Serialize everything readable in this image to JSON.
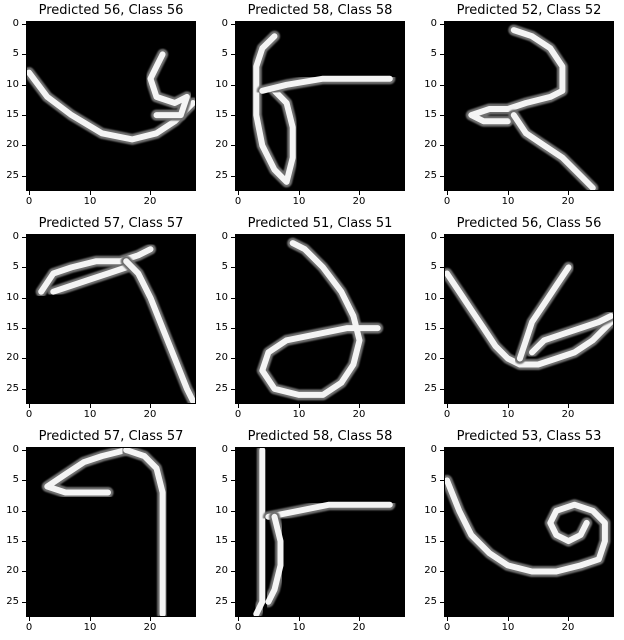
{
  "chart_data": [
    {
      "type": "image",
      "title": "Predicted 56, Class 56",
      "xlim": [
        -0.5,
        27.5
      ],
      "ylim": [
        27.5,
        -0.5
      ],
      "xticks": [
        0,
        10,
        20
      ],
      "yticks": [
        0,
        5,
        10,
        15,
        20,
        25
      ],
      "stroke_paths": [
        [
          [
            0,
            8
          ],
          [
            3,
            12
          ],
          [
            7,
            15
          ],
          [
            12,
            18
          ],
          [
            17,
            19
          ],
          [
            21,
            18
          ],
          [
            24,
            16
          ],
          [
            26,
            14
          ],
          [
            27,
            13
          ]
        ],
        [
          [
            22,
            5
          ],
          [
            21,
            7
          ],
          [
            20,
            9
          ],
          [
            21,
            12
          ],
          [
            24,
            13
          ],
          [
            26,
            12
          ],
          [
            25,
            15
          ],
          [
            21,
            15
          ]
        ]
      ]
    },
    {
      "type": "image",
      "title": "Predicted 58, Class 58",
      "xlim": [
        -0.5,
        27.5
      ],
      "ylim": [
        27.5,
        -0.5
      ],
      "xticks": [
        0,
        10,
        20
      ],
      "yticks": [
        0,
        5,
        10,
        15,
        20,
        25
      ],
      "stroke_paths": [
        [
          [
            6,
            2
          ],
          [
            4,
            4
          ],
          [
            3,
            7
          ],
          [
            3,
            11
          ],
          [
            3,
            15
          ],
          [
            4,
            20
          ],
          [
            6,
            24
          ],
          [
            8,
            26
          ],
          [
            9,
            22
          ],
          [
            9,
            17
          ],
          [
            8,
            13
          ],
          [
            6,
            11
          ]
        ],
        [
          [
            4,
            11
          ],
          [
            8,
            10
          ],
          [
            14,
            9
          ],
          [
            20,
            9
          ],
          [
            25,
            9
          ]
        ]
      ]
    },
    {
      "type": "image",
      "title": "Predicted 52, Class 52",
      "xlim": [
        -0.5,
        27.5
      ],
      "ylim": [
        27.5,
        -0.5
      ],
      "xticks": [
        0,
        10,
        20
      ],
      "yticks": [
        0,
        5,
        10,
        15,
        20,
        25
      ],
      "stroke_paths": [
        [
          [
            11,
            1
          ],
          [
            14,
            2
          ],
          [
            17,
            4
          ],
          [
            19,
            7
          ],
          [
            19,
            11
          ],
          [
            17,
            12
          ],
          [
            13,
            13
          ],
          [
            10,
            14
          ],
          [
            7,
            14
          ],
          [
            4,
            15
          ],
          [
            6,
            16
          ],
          [
            10,
            16
          ]
        ],
        [
          [
            11,
            15
          ],
          [
            13,
            18
          ],
          [
            16,
            20
          ],
          [
            19,
            22
          ],
          [
            22,
            25
          ],
          [
            24,
            27
          ]
        ]
      ]
    },
    {
      "type": "image",
      "title": "Predicted 57, Class 57",
      "xlim": [
        -0.5,
        27.5
      ],
      "ylim": [
        27.5,
        -0.5
      ],
      "xticks": [
        0,
        10,
        20
      ],
      "yticks": [
        0,
        5,
        10,
        15,
        20,
        25
      ],
      "stroke_paths": [
        [
          [
            2,
            9
          ],
          [
            4,
            6
          ],
          [
            7,
            5
          ],
          [
            11,
            4
          ],
          [
            15,
            4
          ],
          [
            18,
            3
          ],
          [
            20,
            2
          ]
        ],
        [
          [
            4,
            9
          ],
          [
            7,
            8
          ],
          [
            10,
            7
          ],
          [
            13,
            6
          ],
          [
            16,
            5
          ]
        ],
        [
          [
            16,
            4
          ],
          [
            18,
            6
          ],
          [
            20,
            10
          ],
          [
            22,
            15
          ],
          [
            24,
            20
          ],
          [
            26,
            25
          ],
          [
            27,
            27
          ]
        ]
      ]
    },
    {
      "type": "image",
      "title": "Predicted 51, Class 51",
      "xlim": [
        -0.5,
        27.5
      ],
      "ylim": [
        27.5,
        -0.5
      ],
      "xticks": [
        0,
        10,
        20
      ],
      "yticks": [
        0,
        5,
        10,
        15,
        20,
        25
      ],
      "stroke_paths": [
        [
          [
            9,
            1
          ],
          [
            11,
            2
          ],
          [
            14,
            5
          ],
          [
            17,
            9
          ],
          [
            19,
            13
          ],
          [
            20,
            17
          ],
          [
            19,
            21
          ],
          [
            17,
            24
          ],
          [
            14,
            26
          ],
          [
            10,
            26
          ],
          [
            6,
            25
          ],
          [
            4,
            22
          ],
          [
            5,
            19
          ],
          [
            8,
            17
          ],
          [
            13,
            16
          ],
          [
            18,
            15
          ],
          [
            23,
            15
          ]
        ]
      ]
    },
    {
      "type": "image",
      "title": "Predicted 56, Class 56",
      "xlim": [
        -0.5,
        27.5
      ],
      "ylim": [
        27.5,
        -0.5
      ],
      "xticks": [
        0,
        10,
        20
      ],
      "yticks": [
        0,
        5,
        10,
        15,
        20,
        25
      ],
      "stroke_paths": [
        [
          [
            0,
            6
          ],
          [
            2,
            9
          ],
          [
            4,
            12
          ],
          [
            6,
            15
          ],
          [
            8,
            18
          ],
          [
            10,
            20
          ],
          [
            12,
            21
          ],
          [
            15,
            21
          ],
          [
            18,
            20
          ],
          [
            21,
            19
          ],
          [
            24,
            17
          ],
          [
            27,
            14
          ]
        ],
        [
          [
            20,
            5
          ],
          [
            18,
            8
          ],
          [
            16,
            11
          ],
          [
            14,
            14
          ],
          [
            13,
            17
          ],
          [
            12,
            20
          ]
        ],
        [
          [
            14,
            19
          ],
          [
            16,
            17
          ],
          [
            19,
            16
          ],
          [
            22,
            15
          ],
          [
            25,
            14
          ],
          [
            27,
            13
          ]
        ]
      ]
    },
    {
      "type": "image",
      "title": "Predicted 57, Class 57",
      "xlim": [
        -0.5,
        27.5
      ],
      "ylim": [
        27.5,
        -0.5
      ],
      "xticks": [
        0,
        10,
        20
      ],
      "yticks": [
        0,
        5,
        10,
        15,
        20,
        25
      ],
      "stroke_paths": [
        [
          [
            16,
            0
          ],
          [
            12,
            1
          ],
          [
            9,
            2
          ],
          [
            6,
            4
          ],
          [
            3,
            6
          ],
          [
            6,
            7
          ],
          [
            10,
            7
          ],
          [
            13,
            7
          ]
        ],
        [
          [
            16,
            0
          ],
          [
            19,
            1
          ],
          [
            21,
            3
          ],
          [
            22,
            7
          ],
          [
            22,
            12
          ],
          [
            22,
            17
          ],
          [
            22,
            22
          ],
          [
            22,
            27
          ]
        ]
      ]
    },
    {
      "type": "image",
      "title": "Predicted 58, Class 58",
      "xlim": [
        -0.5,
        27.5
      ],
      "ylim": [
        27.5,
        -0.5
      ],
      "xticks": [
        0,
        10,
        20
      ],
      "yticks": [
        0,
        5,
        10,
        15,
        20,
        25
      ],
      "stroke_paths": [
        [
          [
            4,
            0
          ],
          [
            4,
            5
          ],
          [
            4,
            10
          ],
          [
            4,
            15
          ],
          [
            4,
            20
          ],
          [
            4,
            25
          ],
          [
            3,
            27
          ]
        ],
        [
          [
            5,
            11
          ],
          [
            10,
            10
          ],
          [
            15,
            9
          ],
          [
            20,
            9
          ],
          [
            25,
            9
          ]
        ],
        [
          [
            6,
            11
          ],
          [
            7,
            15
          ],
          [
            7,
            19
          ],
          [
            6,
            23
          ],
          [
            5,
            25
          ]
        ]
      ]
    },
    {
      "type": "image",
      "title": "Predicted 53, Class 53",
      "xlim": [
        -0.5,
        27.5
      ],
      "ylim": [
        27.5,
        -0.5
      ],
      "xticks": [
        0,
        10,
        20
      ],
      "yticks": [
        0,
        5,
        10,
        15,
        20,
        25
      ],
      "stroke_paths": [
        [
          [
            0,
            5
          ],
          [
            2,
            10
          ],
          [
            4,
            14
          ],
          [
            7,
            17
          ],
          [
            10,
            19
          ],
          [
            14,
            20
          ],
          [
            18,
            20
          ],
          [
            22,
            19
          ],
          [
            25,
            18
          ],
          [
            26,
            15
          ],
          [
            26,
            12
          ],
          [
            24,
            10
          ],
          [
            21,
            9
          ],
          [
            18,
            10
          ],
          [
            17,
            12
          ],
          [
            18,
            14
          ],
          [
            20,
            15
          ],
          [
            22,
            14
          ],
          [
            23,
            12
          ]
        ]
      ]
    }
  ]
}
